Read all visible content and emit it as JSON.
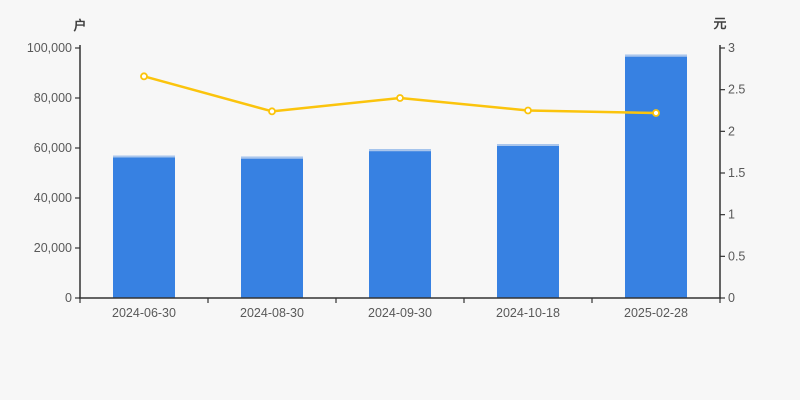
{
  "chart_data": {
    "type": "bar",
    "subtype": "dual-axis-bar-line",
    "title": "",
    "categories": [
      "2024-06-30",
      "2024-08-30",
      "2024-09-30",
      "2024-10-18",
      "2025-02-28"
    ],
    "series": [
      {
        "type": "bar",
        "axis": "left",
        "unit": "户",
        "values": [
          57000,
          56500,
          59500,
          61600,
          97300
        ],
        "color": "#3781E2",
        "top_edge_color": "#AAC6EC"
      },
      {
        "type": "line",
        "axis": "right",
        "unit": "元",
        "values": [
          2.66,
          2.24,
          2.4,
          2.25,
          2.22
        ],
        "color": "#FBC40D",
        "marker": "hollow-circle",
        "marker_fill": "#FFFFFF"
      }
    ],
    "left_axis": {
      "label": "户",
      "min": 0,
      "max": 100000,
      "tick_step": 20000,
      "tick_labels": [
        "0",
        "20,000",
        "40,000",
        "60,000",
        "80,000",
        "100,000"
      ]
    },
    "right_axis": {
      "label": "元",
      "min": 0,
      "max": 3,
      "tick_step": 0.5,
      "tick_labels": [
        "0",
        "0.5",
        "1",
        "1.5",
        "2",
        "2.5",
        "3"
      ]
    },
    "grid": false,
    "legend": null,
    "colors": {
      "background": "#F7F7F7",
      "axis_line": "#333333",
      "tick_text": "#595959",
      "axis_name_text": "#404040"
    }
  }
}
